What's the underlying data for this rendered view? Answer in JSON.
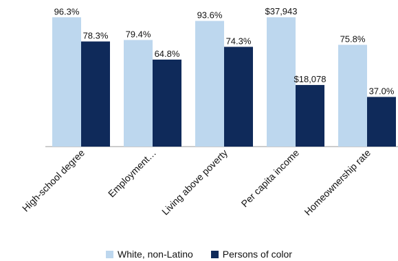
{
  "chart_data": {
    "type": "bar",
    "title": "",
    "xlabel": "",
    "ylabel": "",
    "grid": false,
    "legend_position": "bottom",
    "categories": [
      "High-school degree",
      "Employment…",
      "Living above poverty",
      "Per capita income",
      "Homeownership rate"
    ],
    "series": [
      {
        "name": "White, non-Latino",
        "color": "#bdd7ee",
        "values": [
          96.3,
          79.4,
          93.6,
          37943,
          75.8
        ],
        "labels": [
          "96.3%",
          "79.4%",
          "93.6%",
          "$37,943",
          "75.8%"
        ]
      },
      {
        "name": "Persons of color",
        "color": "#0f2a5a",
        "values": [
          78.3,
          64.8,
          74.3,
          18078,
          37.0
        ],
        "labels": [
          "78.3%",
          "64.8%",
          "74.3%",
          "$18,078",
          "37.0%"
        ]
      }
    ],
    "category_ymax": [
      100,
      100,
      100,
      39400,
      100
    ]
  }
}
